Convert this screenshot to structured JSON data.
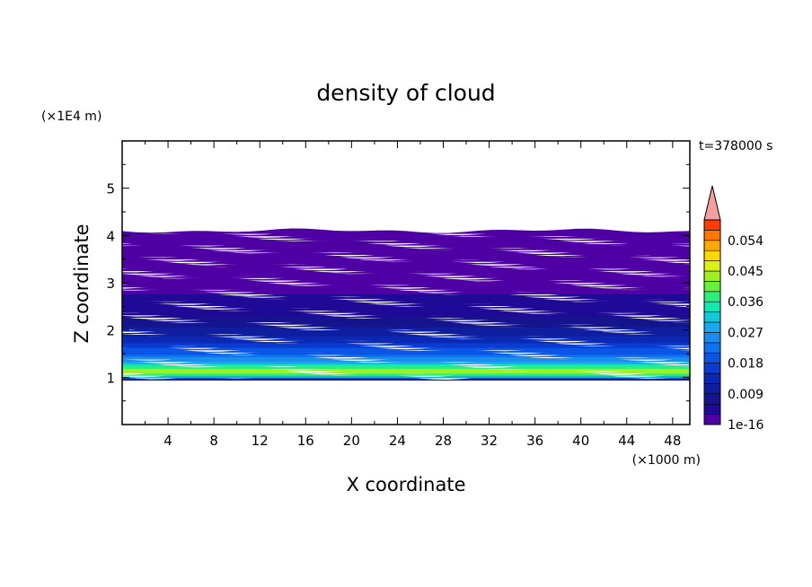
{
  "chart_data": {
    "type": "heatmap",
    "title": "density of cloud",
    "xlabel": "X coordinate",
    "ylabel": "Z coordinate",
    "x_unit": "(×1000 m)",
    "y_unit": "(×1E4 m)",
    "time_label": "t=378000 s",
    "xlim": [
      0,
      49.5
    ],
    "ylim": [
      0,
      6
    ],
    "x_ticks": [
      4,
      8,
      12,
      16,
      20,
      24,
      28,
      32,
      36,
      40,
      44,
      48
    ],
    "y_ticks": [
      1,
      2,
      3,
      4,
      5
    ],
    "colorbar": {
      "labels": [
        "1e-16",
        "0.009",
        "0.018",
        "0.027",
        "0.036",
        "0.045",
        "0.054"
      ],
      "levels": [
        1e-16,
        0.003,
        0.006,
        0.009,
        0.012,
        0.015,
        0.018,
        0.021,
        0.024,
        0.027,
        0.03,
        0.033,
        0.036,
        0.039,
        0.042,
        0.045,
        0.048,
        0.051,
        0.054,
        0.057
      ],
      "colors": [
        "#4f00a4",
        "#1e0a96",
        "#16148c",
        "#0e1e9e",
        "#0a28b4",
        "#0a3cd2",
        "#0a55e6",
        "#0f72ee",
        "#1a8ef0",
        "#1aaaf0",
        "#14c8dc",
        "#14e6b4",
        "#28f078",
        "#64f03c",
        "#a0f01e",
        "#dcf014",
        "#ffd800",
        "#ffa800",
        "#ff7800",
        "#ff3c00"
      ],
      "extend_color": "#f4a0a0"
    },
    "vertical_profile": [
      {
        "z": 0.95,
        "value": 0.004
      },
      {
        "z": 1.05,
        "value": 0.036
      },
      {
        "z": 1.15,
        "value": 0.045
      },
      {
        "z": 1.3,
        "value": 0.03
      },
      {
        "z": 1.5,
        "value": 0.021
      },
      {
        "z": 1.75,
        "value": 0.015
      },
      {
        "z": 2.0,
        "value": 0.01
      },
      {
        "z": 2.3,
        "value": 0.006
      },
      {
        "z": 2.6,
        "value": 0.004
      },
      {
        "z": 2.9,
        "value": 0.002
      },
      {
        "z": 4.1,
        "value": 1e-16
      }
    ],
    "cloud_base_z": 0.95,
    "cloud_top_z": 4.1
  }
}
